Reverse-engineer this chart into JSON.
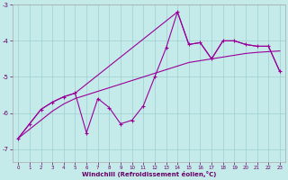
{
  "bg_color": "#c5eaea",
  "grid_color": "#9ecece",
  "line_color": "#990099",
  "xlabel": "Windchill (Refroidissement éolien,°C)",
  "xlim": [
    -0.5,
    23.5
  ],
  "ylim": [
    -7.35,
    -3.0
  ],
  "xticks": [
    0,
    1,
    2,
    3,
    4,
    5,
    6,
    7,
    8,
    9,
    10,
    11,
    12,
    13,
    14,
    15,
    16,
    17,
    18,
    19,
    20,
    21,
    22,
    23
  ],
  "yticks": [
    -7,
    -6,
    -5,
    -4,
    -3
  ],
  "line_smooth_x": [
    0,
    1,
    2,
    3,
    4,
    5,
    6,
    7,
    8,
    9,
    10,
    11,
    12,
    13,
    14,
    15,
    16,
    17,
    18,
    19,
    20,
    21,
    22,
    23
  ],
  "line_smooth_y": [
    -6.7,
    -6.45,
    -6.2,
    -5.95,
    -5.75,
    -5.6,
    -5.5,
    -5.4,
    -5.3,
    -5.2,
    -5.1,
    -5.0,
    -4.9,
    -4.8,
    -4.7,
    -4.6,
    -4.55,
    -4.5,
    -4.45,
    -4.4,
    -4.35,
    -4.32,
    -4.3,
    -4.28
  ],
  "line_jagged_x": [
    0,
    1,
    2,
    3,
    4,
    5,
    6,
    7,
    8,
    9,
    10,
    11,
    12,
    13,
    14,
    15,
    16,
    17,
    18,
    19,
    20,
    21,
    22,
    23
  ],
  "line_jagged_y": [
    -6.7,
    -6.3,
    -5.9,
    -5.7,
    -5.55,
    -5.45,
    -6.55,
    -5.6,
    -5.85,
    -6.3,
    -6.2,
    -5.8,
    -5.0,
    -4.2,
    -3.2,
    -4.1,
    -4.05,
    -4.5,
    -4.0,
    -4.0,
    -4.1,
    -4.15,
    -4.15,
    -4.85
  ],
  "line_envelope_x": [
    0,
    1,
    2,
    3,
    4,
    5,
    14,
    15,
    16,
    17,
    18,
    19,
    20,
    21,
    22,
    23
  ],
  "line_envelope_y": [
    -6.7,
    -6.3,
    -5.9,
    -5.7,
    -5.55,
    -5.45,
    -3.2,
    -4.1,
    -4.05,
    -4.5,
    -4.0,
    -4.0,
    -4.1,
    -4.15,
    -4.15,
    -4.85
  ]
}
